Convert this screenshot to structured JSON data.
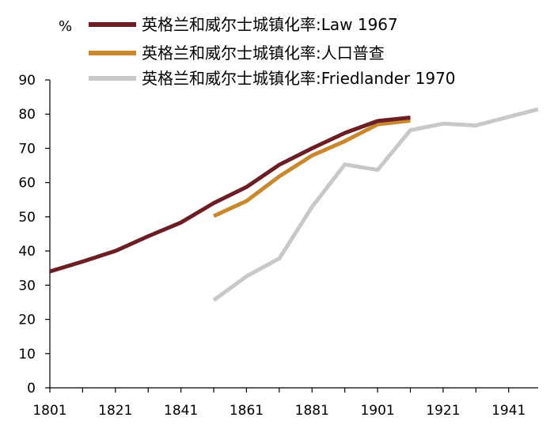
{
  "chart_data": {
    "type": "line",
    "ylabel": "%",
    "xlim": [
      1801,
      1950
    ],
    "ylim": [
      0,
      90
    ],
    "x_ticks": [
      "1801",
      "1821",
      "1841",
      "1861",
      "1881",
      "1901",
      "1921",
      "1941"
    ],
    "y_ticks": [
      "0",
      "10",
      "20",
      "30",
      "40",
      "50",
      "60",
      "70",
      "80",
      "90"
    ],
    "grid": false,
    "legend_position": "top",
    "series": [
      {
        "name": "英格兰和威尔士城镇化率:Law 1967",
        "color": "#6b1e24",
        "points": [
          [
            1801,
            34
          ],
          [
            1811,
            36.9
          ],
          [
            1821,
            40
          ],
          [
            1831,
            44.3
          ],
          [
            1841,
            48.3
          ],
          [
            1851,
            54
          ],
          [
            1861,
            58.7
          ],
          [
            1871,
            65.2
          ],
          [
            1881,
            70
          ],
          [
            1891,
            74.5
          ],
          [
            1901,
            78
          ],
          [
            1911,
            79
          ]
        ]
      },
      {
        "name": "英格兰和威尔士城镇化率:人口普查",
        "color": "#c8892e",
        "points": [
          [
            1851,
            50.2
          ],
          [
            1861,
            54.6
          ],
          [
            1871,
            61.8
          ],
          [
            1881,
            67.9
          ],
          [
            1891,
            72.1
          ],
          [
            1901,
            77
          ],
          [
            1911,
            78.1
          ]
        ]
      },
      {
        "name": "英格兰和威尔士城镇化率:Friedlander 1970",
        "color": "#c8c8c8",
        "points": [
          [
            1851,
            25.6
          ],
          [
            1861,
            32.6
          ],
          [
            1871,
            37.8
          ],
          [
            1881,
            52.9
          ],
          [
            1891,
            65.3
          ],
          [
            1901,
            63.7
          ],
          [
            1911,
            75.3
          ],
          [
            1921,
            77.2
          ],
          [
            1931,
            76.7
          ],
          [
            1941,
            79.2
          ],
          [
            1951,
            81.7
          ]
        ]
      }
    ]
  }
}
